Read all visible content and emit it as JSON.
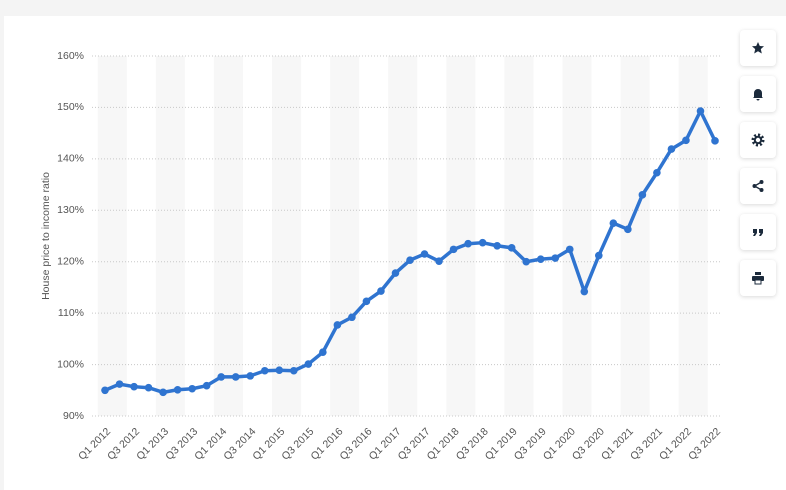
{
  "chart_data": {
    "type": "line",
    "y_label": "House price to income ratio",
    "categories": [
      "Q1 2012",
      null,
      "Q3 2012",
      null,
      "Q1 2013",
      null,
      "Q3 2013",
      null,
      "Q1 2014",
      null,
      "Q3 2014",
      null,
      "Q1 2015",
      null,
      "Q3 2015",
      null,
      "Q1 2016",
      null,
      "Q3 2016",
      null,
      "Q1 2017",
      null,
      "Q3 2017",
      null,
      "Q1 2018",
      null,
      "Q3 2018",
      null,
      "Q1 2019",
      null,
      "Q3 2019",
      null,
      "Q1 2020",
      null,
      "Q3 2020",
      null,
      "Q1 2021",
      null,
      "Q3 2021",
      null,
      "Q1 2022",
      null,
      "Q3 2022"
    ],
    "series": [
      {
        "name": "House price to income ratio",
        "color": "#2f74d0",
        "values": [
          95,
          96.2,
          95.7,
          95.5,
          94.6,
          95.1,
          95.3,
          95.9,
          97.6,
          97.6,
          97.8,
          98.8,
          98.9,
          98.8,
          100.1,
          102.4,
          107.7,
          109.2,
          112.3,
          114.3,
          117.8,
          120.3,
          121.5,
          120.1,
          122.4,
          123.5,
          123.7,
          123.1,
          122.7,
          120,
          120.5,
          120.7,
          122.4,
          114.2,
          121.2,
          127.5,
          126.3,
          133,
          137.3,
          141.9,
          143.6,
          149.3,
          143.5
        ]
      }
    ],
    "ylim": [
      90,
      160
    ],
    "yticks": [
      {
        "value": 90,
        "label": "90%"
      },
      {
        "value": 100,
        "label": "100%"
      },
      {
        "value": 110,
        "label": "110%"
      },
      {
        "value": 120,
        "label": "120%"
      },
      {
        "value": 130,
        "label": "130%"
      },
      {
        "value": 140,
        "label": "140%"
      },
      {
        "value": 150,
        "label": "150%"
      },
      {
        "value": 160,
        "label": "160%"
      }
    ],
    "grid": true
  }
}
